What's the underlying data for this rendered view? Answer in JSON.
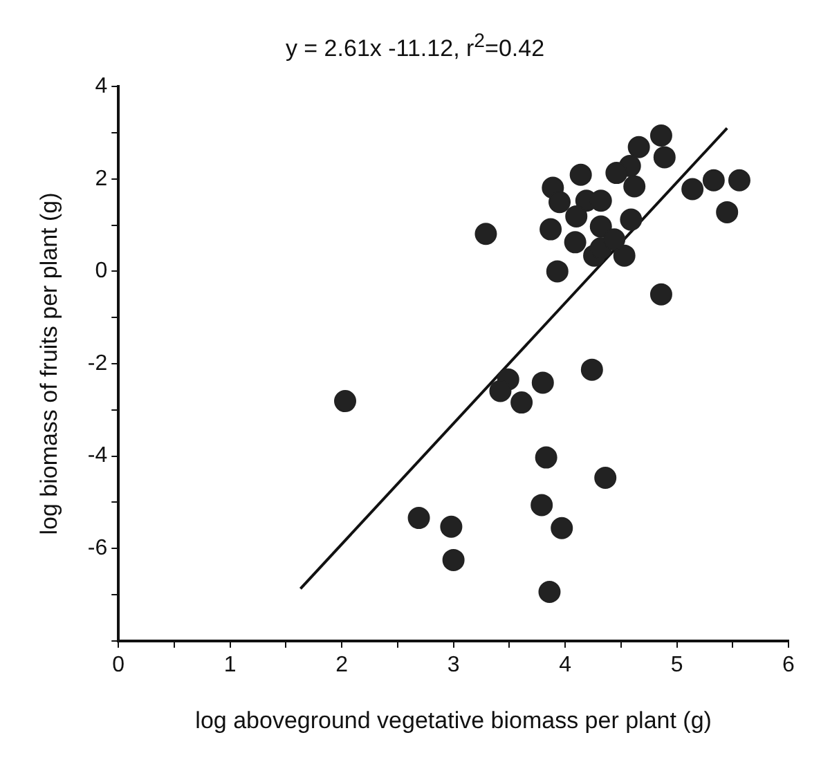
{
  "chart_data": {
    "type": "scatter",
    "title": "y = 2.61x -11.12, r$^{2}$=0.42",
    "xlabel": "log aboveground vegetative biomass per plant (g)",
    "ylabel": "log biomass of fruits per plant (g)",
    "xlim": [
      0,
      6
    ],
    "ylim": [
      -8,
      4
    ],
    "xticks": [
      0,
      {
        "value": 0.5,
        "label": null
      },
      1,
      {
        "value": 1.5,
        "label": null
      },
      2,
      {
        "value": 2.5,
        "label": null
      },
      3,
      {
        "value": 3.5,
        "label": null
      },
      4,
      {
        "value": 4.5,
        "label": null
      },
      5,
      {
        "value": 5.5,
        "label": null
      },
      6
    ],
    "yticks": [
      {
        "value": -8,
        "label": null
      },
      {
        "value": -7,
        "label": null
      },
      -6,
      {
        "value": -5,
        "label": null
      },
      -4,
      {
        "value": -3,
        "label": null
      },
      -2,
      {
        "value": -1,
        "label": null
      },
      0,
      {
        "value": 1,
        "label": null
      },
      2,
      {
        "value": 3,
        "label": null
      },
      4
    ],
    "grid": false,
    "legend": false,
    "series": [
      {
        "color": "#222222",
        "marker": "circle",
        "x": [
          2.03,
          3.49,
          3.42,
          3.61,
          3.8,
          4.24,
          3.83,
          4.36,
          2.69,
          2.98,
          3.0,
          3.79,
          3.97,
          3.86,
          3.29,
          3.93,
          4.86,
          5.45,
          5.14,
          5.33,
          5.56,
          4.86,
          4.89,
          4.66,
          4.58,
          4.62,
          4.46,
          4.14,
          3.89,
          3.95,
          4.19,
          4.32,
          4.1,
          3.87,
          4.59,
          4.32,
          4.09,
          4.26,
          4.32,
          4.53,
          4.44
        ],
        "values": [
          -2.81,
          -2.34,
          -2.59,
          -2.84,
          -2.41,
          -2.13,
          -4.03,
          -4.47,
          -5.34,
          -5.53,
          -6.25,
          -5.06,
          -5.56,
          -6.94,
          0.81,
          0.0,
          -0.5,
          1.28,
          1.78,
          1.97,
          1.97,
          2.94,
          2.47,
          2.69,
          2.28,
          1.84,
          2.13,
          2.09,
          1.81,
          1.5,
          1.53,
          1.53,
          1.19,
          0.91,
          1.12,
          0.97,
          0.63,
          0.34,
          0.5,
          0.34,
          0.69
        ]
      },
      {
        "type": "line",
        "color": "#111111",
        "marker": "none",
        "line_style": "solid",
        "x": [
          1.63,
          5.45
        ],
        "values": [
          -6.87,
          3.1
        ]
      }
    ]
  }
}
